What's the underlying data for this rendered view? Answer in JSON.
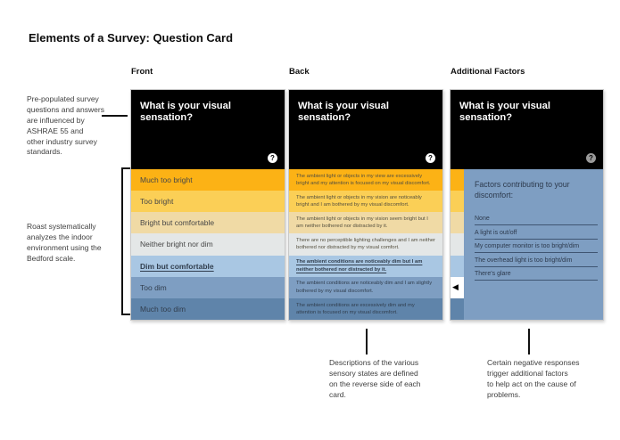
{
  "title": "Elements of a Survey: Question Card",
  "annotations": {
    "influences": "Pre-populated survey\nquestions and answers\nare influenced by\nASHRAE 55 and\nother industry survey\nstandards.",
    "bedford": "Roast systematically\nanalyzes the indoor\nenvironment using the\nBedford scale.",
    "descriptions": "Descriptions of the various\nsensory states are defined\non the reverse side of each\ncard.",
    "triggers": "Certain negative responses\ntrigger additional factors\nto help act on the cause of\nproblems."
  },
  "colors": {
    "scale": [
      "#fcb215",
      "#fbcf56",
      "#f0daa5",
      "#e4e7e7",
      "#a9c7e3",
      "#7e9ec2",
      "#5f84aa"
    ],
    "panel": "#7e9ec2",
    "header": "#000000"
  },
  "cards": {
    "question": "What is your visual sensation?",
    "help_icon": "?",
    "front": {
      "label": "Front",
      "rows": [
        {
          "label": "Much too bright",
          "color": "#fcb215",
          "selected": false
        },
        {
          "label": "Too bright",
          "color": "#fbcf56",
          "selected": false
        },
        {
          "label": "Bright but comfortable",
          "color": "#f0daa5",
          "selected": false
        },
        {
          "label": "Neither bright nor dim",
          "color": "#e4e7e7",
          "selected": false
        },
        {
          "label": "Dim but comfortable",
          "color": "#a9c7e3",
          "selected": true
        },
        {
          "label": "Too dim",
          "color": "#7e9ec2",
          "selected": false
        },
        {
          "label": "Much too dim",
          "color": "#5f84aa",
          "selected": false
        }
      ]
    },
    "back": {
      "label": "Back",
      "rows": [
        {
          "text": "The ambient light or objects in my view are excessively bright and my attention is focused on my visual discomfort.",
          "color": "#fcb215",
          "selected": false
        },
        {
          "text": "The ambient light or objects in my vision are noticeably bright and I am bothered by my visual discomfort.",
          "color": "#fbcf56",
          "selected": false
        },
        {
          "text": "The ambient light or objects in my vision seem bright but I am neither bothered nor distracted by it.",
          "color": "#f0daa5",
          "selected": false
        },
        {
          "text": "There are no perceptible lighting challenges and I am neither bothered nor distracted by my visual comfort.",
          "color": "#e4e7e7",
          "selected": false
        },
        {
          "text": "The ambient conditions are noticeably dim but I am neither bothered nor distracted by it.",
          "color": "#a9c7e3",
          "selected": true
        },
        {
          "text": "The ambient conditions are noticeably dim and I am slightly bothered by my visual discomfort.",
          "color": "#7e9ec2",
          "selected": false
        },
        {
          "text": "The ambient conditions are excessively dim and my attention is focused on my visual discomfort.",
          "color": "#5f84aa",
          "selected": false
        }
      ]
    },
    "factors": {
      "label": "Additional Factors",
      "heading": "Factors contributing to your\ndiscomfort:",
      "items": [
        "None",
        "A light is out/off",
        "My computer monitor is too bright/dim",
        "The overhead light is too bright/dim",
        "There's glare"
      ],
      "back_arrow": "◀",
      "strip": [
        "#fcb215",
        "#fbcf56",
        "#f0daa5",
        "#e4e7e7",
        "#a9c7e3",
        "#ffffff",
        "#5f84aa"
      ]
    }
  }
}
